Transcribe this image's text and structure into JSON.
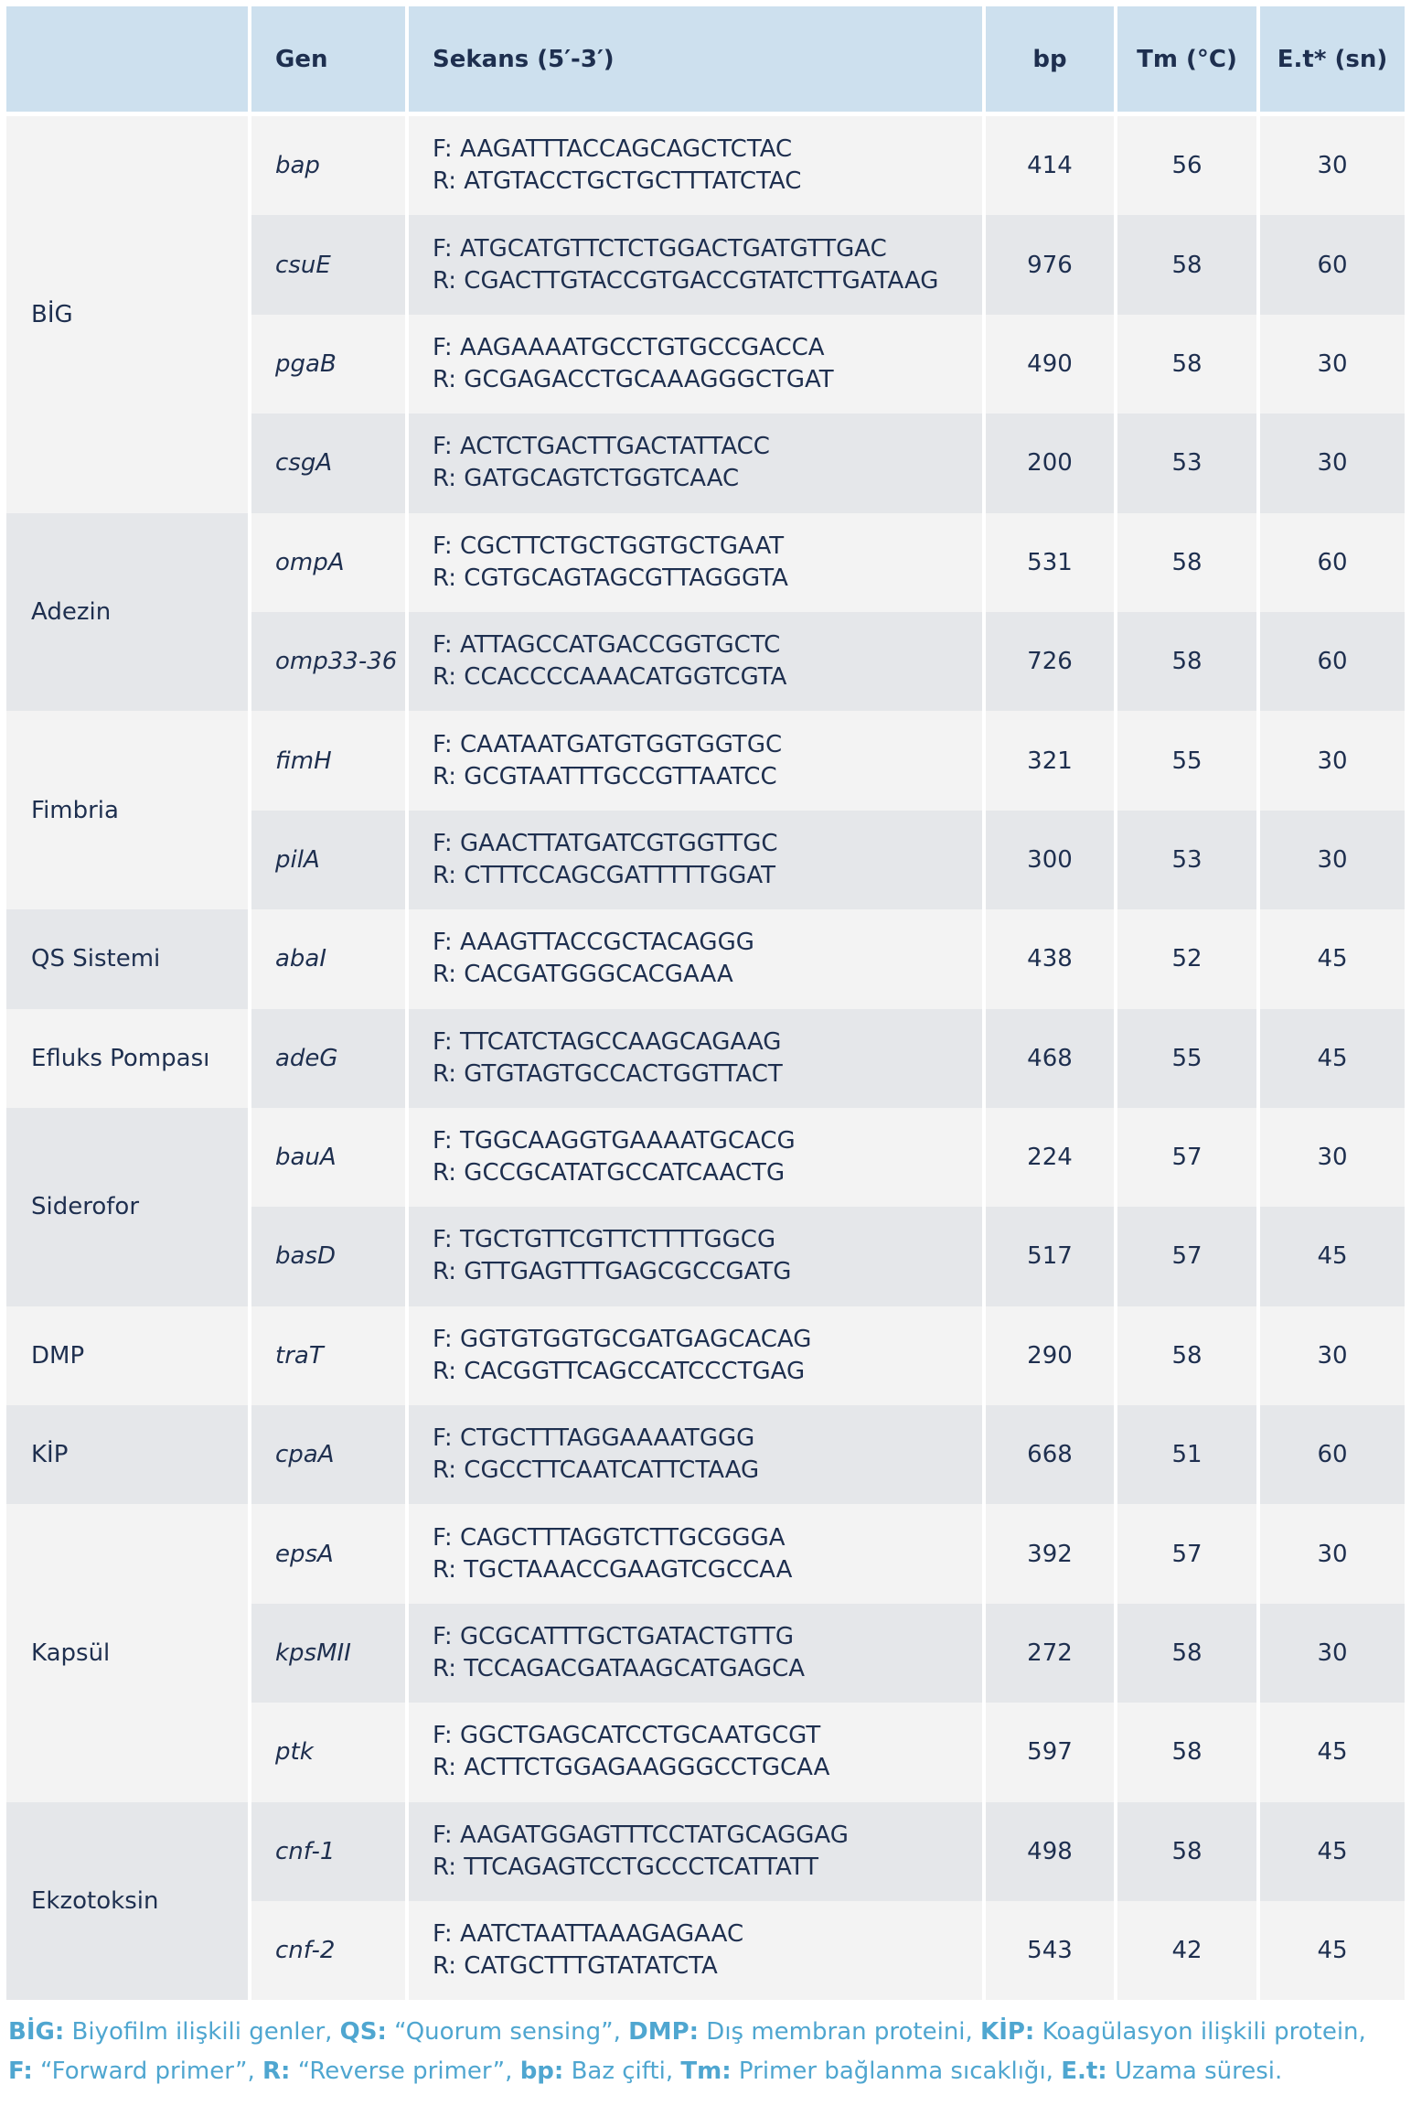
{
  "headers": {
    "group": "",
    "gene": "Gen",
    "sequence": "Sekans (5′-3′)",
    "bp": "bp",
    "tm": "Tm (°C)",
    "et": "E.t* (sn)"
  },
  "groups": [
    {
      "name": "BİG",
      "genes": [
        {
          "gene": "bap",
          "f": "F: AAGATTTACCAGCAGCTCTAC",
          "r": "R: ATGTACCTGCTGCTTTATCTAC",
          "bp": "414",
          "tm": "56",
          "et": "30"
        },
        {
          "gene": "csuE",
          "f": "F: ATGCATGTTCTCTGGACTGATGTTGAC",
          "r": "R: CGACTTGTACCGTGACCGTATCTTGATAAG",
          "bp": "976",
          "tm": "58",
          "et": "60"
        },
        {
          "gene": "pgaB",
          "f": "F: AAGAAAATGCCTGTGCCGACCA",
          "r": "R: GCGAGACCTGCAAAGGGCTGAT",
          "bp": "490",
          "tm": "58",
          "et": "30"
        },
        {
          "gene": "csgA",
          "f": "F: ACTCTGACTTGACTATTACC",
          "r": "R: GATGCAGTCTGGTCAAC",
          "bp": "200",
          "tm": "53",
          "et": "30"
        }
      ]
    },
    {
      "name": "Adezin",
      "genes": [
        {
          "gene": "ompA",
          "f": "F: CGCTTCTGCTGGTGCTGAAT",
          "r": "R: CGTGCAGTAGCGTTAGGGTA",
          "bp": "531",
          "tm": "58",
          "et": "60"
        },
        {
          "gene": "omp33-36",
          "f": "F: ATTAGCCATGACCGGTGCTC",
          "r": "R: CCACCCCAAACATGGTCGTA",
          "bp": "726",
          "tm": "58",
          "et": "60"
        }
      ]
    },
    {
      "name": "Fimbria",
      "genes": [
        {
          "gene": "fimH",
          "f": "F: CAATAATGATGTGGTGGTGC",
          "r": "R: GCGTAATTTGCCGTTAATCC",
          "bp": "321",
          "tm": "55",
          "et": "30"
        },
        {
          "gene": "pilA",
          "f": "F: GAACTTATGATCGTGGTTGC",
          "r": "R: CTTTCCAGCGATTTTTGGAT",
          "bp": "300",
          "tm": "53",
          "et": "30"
        }
      ]
    },
    {
      "name": "QS Sistemi",
      "genes": [
        {
          "gene": "abaI",
          "f": "F: AAAGTTACCGCTACAGGG",
          "r": "R: CACGATGGGCACGAAA",
          "bp": "438",
          "tm": "52",
          "et": "45"
        }
      ]
    },
    {
      "name": "Efluks Pompası",
      "genes": [
        {
          "gene": "adeG",
          "f": "F: TTCATCTAGCCAAGCAGAAG",
          "r": "R: GTGTAGTGCCACTGGTTACT",
          "bp": "468",
          "tm": "55",
          "et": "45"
        }
      ]
    },
    {
      "name": "Siderofor",
      "genes": [
        {
          "gene": "bauA",
          "f": "F: TGGCAAGGTGAAAATGCACG",
          "r": "R: GCCGCATATGCCATCAACTG",
          "bp": "224",
          "tm": "57",
          "et": "30"
        },
        {
          "gene": "basD",
          "f": "F: TGCTGTTCGTTCTTTTGGCG",
          "r": "R: GTTGAGTTTGAGCGCCGATG",
          "bp": "517",
          "tm": "57",
          "et": "45"
        }
      ]
    },
    {
      "name": "DMP",
      "genes": [
        {
          "gene": "traT",
          "f": "F: GGTGTGGTGCGATGAGCACAG",
          "r": "R: CACGGTTCAGCCATCCCTGAG",
          "bp": "290",
          "tm": "58",
          "et": "30"
        }
      ]
    },
    {
      "name": "KİP",
      "genes": [
        {
          "gene": "cpaA",
          "f": "F: CTGCTTTAGGAAAATGGG",
          "r": "R: CGCCTTCAATCATTCTAAG",
          "bp": "668",
          "tm": "51",
          "et": "60"
        }
      ]
    },
    {
      "name": "Kapsül",
      "genes": [
        {
          "gene": "epsA",
          "f": "F: CAGCTTTAGGTCTTGCGGGA",
          "r": "R: TGCTAAACCGAAGTCGCCAA",
          "bp": "392",
          "tm": "57",
          "et": "30"
        },
        {
          "gene": "kpsMII",
          "f": "F: GCGCATTTGCTGATACTGTTG",
          "r": "R: TCCAGACGATAAGCATGAGCA",
          "bp": "272",
          "tm": "58",
          "et": "30"
        },
        {
          "gene": "ptk",
          "f": "F: GGCTGAGCATCCTGCAATGCGT",
          "r": "R: ACTTCTGGAGAAGGGCCTGCAA",
          "bp": "597",
          "tm": "58",
          "et": "45"
        }
      ]
    },
    {
      "name": "Ekzotoksin",
      "genes": [
        {
          "gene": "cnf-1",
          "f": "F: AAGATGGAGTTTCCTATGCAGGAG",
          "r": "R: TTCAGAGTCCTGCCCTCATTATT",
          "bp": "498",
          "tm": "58",
          "et": "45"
        },
        {
          "gene": "cnf-2",
          "f": "F: AATCTAATTAAAGAGAAC",
          "r": "R: CATGCTTTGTATATCTA",
          "bp": "543",
          "tm": "42",
          "et": "45"
        }
      ]
    }
  ],
  "footnote": {
    "line1": [
      {
        "term": "BİG:",
        "def": " Biyofilm ilişkili genler, "
      },
      {
        "term": "QS:",
        "def": " “Quorum sensing”, "
      },
      {
        "term": "DMP:",
        "def": " Dış membran proteini, "
      },
      {
        "term": "KİP:",
        "def": " Koagülasyon ilişkili protein,"
      }
    ],
    "line2": [
      {
        "term": "F:",
        "def": " “Forward primer”, "
      },
      {
        "term": "R:",
        "def": " “Reverse primer”, "
      },
      {
        "term": "bp:",
        "def": " Baz çifti, "
      },
      {
        "term": "Tm:",
        "def": " Primer bağlanma sıcaklığı, "
      },
      {
        "term": "E.t:",
        "def": " Uzama süresi."
      }
    ]
  },
  "colors": {
    "header_bg": "#cde0ee",
    "row_light": "#f3f3f3",
    "row_dark": "#e5e7ea",
    "text": "#1e2f4f",
    "footnote": "#4fa6d0"
  }
}
